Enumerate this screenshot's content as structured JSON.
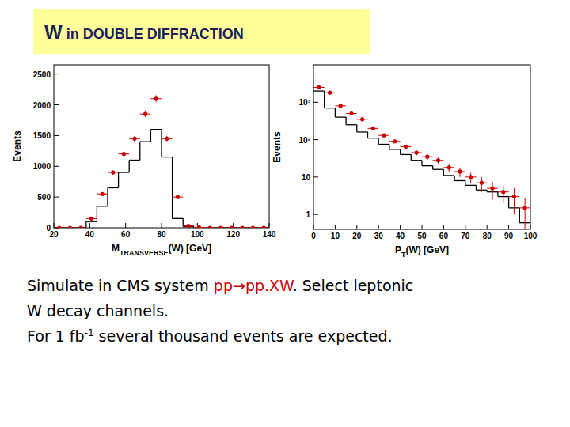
{
  "title": {
    "lead": "W",
    "rest": " in DOUBLE DIFFRACTION"
  },
  "caption": [
    [
      {
        "text": "Simulate in CMS system "
      },
      {
        "text": "pp→pp.XW",
        "color": "#cc0000"
      },
      {
        "text": ". Select leptonic"
      }
    ],
    [
      {
        "text": "W decay channels."
      }
    ],
    [
      {
        "text": "For 1 fb"
      },
      {
        "text": "-1",
        "sup": true
      },
      {
        "text": " several thousand events are expected."
      }
    ]
  ],
  "chart_data": [
    {
      "type": "histogram",
      "xlabel": [
        "M",
        "TRANSVERSE",
        "(W) [GeV]"
      ],
      "ylabel": "Events",
      "bins": [
        20,
        26,
        32,
        38,
        44,
        50,
        56,
        62,
        68,
        74,
        80,
        86,
        92,
        98,
        104,
        110,
        116,
        122,
        128,
        134,
        140
      ],
      "xlim": [
        20,
        140
      ],
      "xticks": [
        20,
        40,
        60,
        80,
        100,
        120,
        140
      ],
      "ylim": [
        0,
        2650
      ],
      "yticks": [
        0,
        500,
        1000,
        1500,
        2000,
        2500
      ],
      "series": [
        {
          "type": "step",
          "color": "#000000",
          "values": [
            0,
            0,
            0,
            100,
            350,
            650,
            900,
            1100,
            1400,
            1600,
            1150,
            150,
            20,
            3,
            0,
            0,
            0,
            0,
            0,
            0
          ]
        },
        {
          "type": "scatter",
          "color": "#cc0000",
          "marker": "circle",
          "values": [
            0,
            0,
            0,
            150,
            550,
            900,
            1200,
            1450,
            1850,
            2100,
            1450,
            500,
            30,
            5,
            0,
            0,
            0,
            0,
            0,
            0
          ],
          "errors": [
            0,
            0,
            0,
            15,
            30,
            35,
            40,
            45,
            50,
            55,
            45,
            25,
            6,
            2,
            0,
            0,
            0,
            0,
            0,
            0
          ]
        }
      ]
    },
    {
      "type": "histogram",
      "log": "y",
      "xlabel": [
        "P",
        "T",
        "(W) [GeV]"
      ],
      "ylabel": "Events",
      "bins": [
        0,
        5,
        10,
        15,
        20,
        25,
        30,
        35,
        40,
        45,
        50,
        55,
        60,
        65,
        70,
        75,
        80,
        85,
        90,
        95,
        100
      ],
      "xlim": [
        0,
        100
      ],
      "xticks": [
        0,
        10,
        20,
        30,
        40,
        50,
        60,
        70,
        80,
        90,
        100
      ],
      "ylim": [
        0.4,
        10000
      ],
      "yticks": [
        1,
        10,
        {
          "value": 100,
          "label": "10²"
        },
        {
          "value": 1000,
          "label": "10³"
        }
      ],
      "series": [
        {
          "type": "step",
          "color": "#000000",
          "values": [
            2000,
            700,
            400,
            250,
            160,
            110,
            75,
            55,
            40,
            28,
            20,
            16,
            11,
            8,
            6,
            4.5,
            4,
            3,
            1.5,
            0.6
          ]
        },
        {
          "type": "scatter",
          "color": "#cc0000",
          "marker": "circle",
          "values": [
            2500,
            1800,
            800,
            500,
            350,
            200,
            130,
            90,
            65,
            45,
            35,
            28,
            18,
            14,
            10,
            7,
            5,
            4,
            3,
            1.5
          ],
          "errors": [
            50,
            40,
            30,
            22,
            18,
            14,
            11,
            9,
            8,
            7,
            6,
            5,
            4,
            4,
            3,
            3,
            2.5,
            2,
            2,
            1.2
          ]
        }
      ]
    }
  ]
}
